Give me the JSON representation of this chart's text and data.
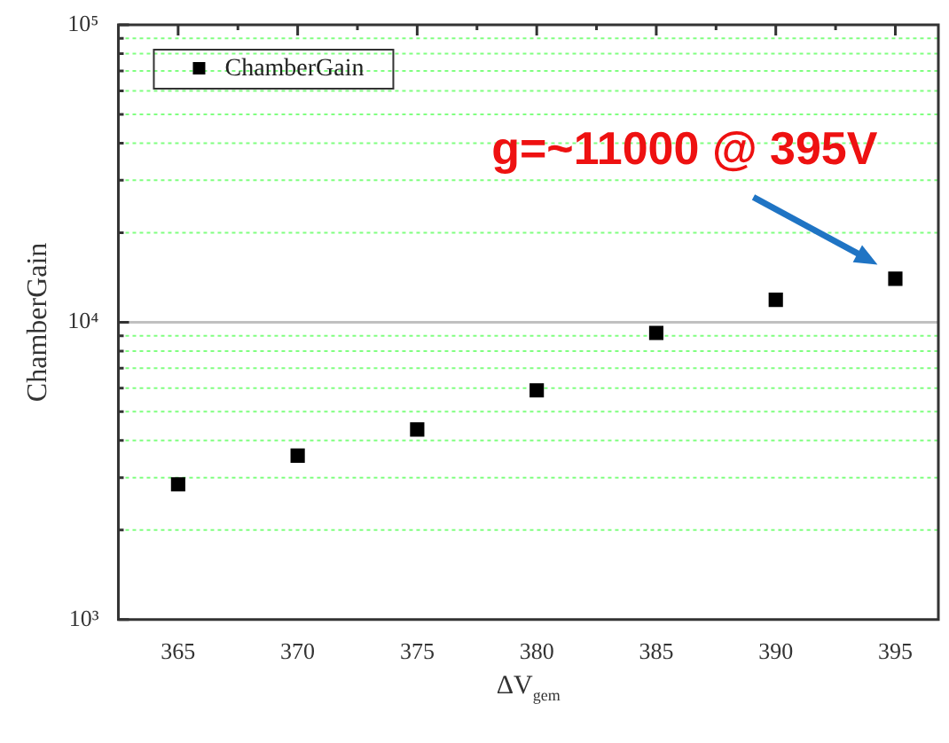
{
  "chart_data": {
    "type": "scatter",
    "xlabel": "ΔV$_{gem}$",
    "ylabel": "ChamberGain",
    "x": [
      365,
      370,
      375,
      380,
      385,
      390,
      395
    ],
    "series": [
      {
        "name": "ChamberGain",
        "color": "#000000",
        "values": [
          2850,
          3560,
          4360,
          5900,
          9200,
          11900,
          14000
        ]
      }
    ],
    "xlim": [
      362.5,
      396.8
    ],
    "xticks": [
      365,
      {
        "value": 367.5,
        "label": null
      },
      370,
      {
        "value": 372.5,
        "label": null
      },
      375,
      {
        "value": 377.5,
        "label": null
      },
      380,
      {
        "value": 382.5,
        "label": null
      },
      385,
      {
        "value": 387.5,
        "label": null
      },
      390,
      {
        "value": 392.5,
        "label": null
      },
      395
    ],
    "ylim": [
      1000,
      100000
    ],
    "yticks": [
      {
        "value": 1000,
        "label": "10³"
      },
      {
        "value": 2000,
        "label": null
      },
      {
        "value": 3000,
        "label": null
      },
      {
        "value": 4000,
        "label": null
      },
      {
        "value": 5000,
        "label": null
      },
      {
        "value": 6000,
        "label": null
      },
      {
        "value": 7000,
        "label": null
      },
      {
        "value": 8000,
        "label": null
      },
      {
        "value": 9000,
        "label": null
      },
      {
        "value": 10000,
        "label": "10⁴"
      },
      {
        "value": 20000,
        "label": null
      },
      {
        "value": 30000,
        "label": null
      },
      {
        "value": 40000,
        "label": null
      },
      {
        "value": 50000,
        "label": null
      },
      {
        "value": 60000,
        "label": null
      },
      {
        "value": 70000,
        "label": null
      },
      {
        "value": 80000,
        "label": null
      },
      {
        "value": 90000,
        "label": null
      },
      {
        "value": 100000,
        "label": "10⁵"
      }
    ],
    "ref_lines": [
      {
        "axis": "y",
        "value": 10000,
        "color": "#c0c0c0"
      }
    ],
    "log": "y",
    "grid": "y",
    "legend": "top left",
    "marker": "square",
    "annotations": [
      {
        "text": "g=~11000 @ 395V",
        "x": 395,
        "y": 14000
      }
    ]
  }
}
